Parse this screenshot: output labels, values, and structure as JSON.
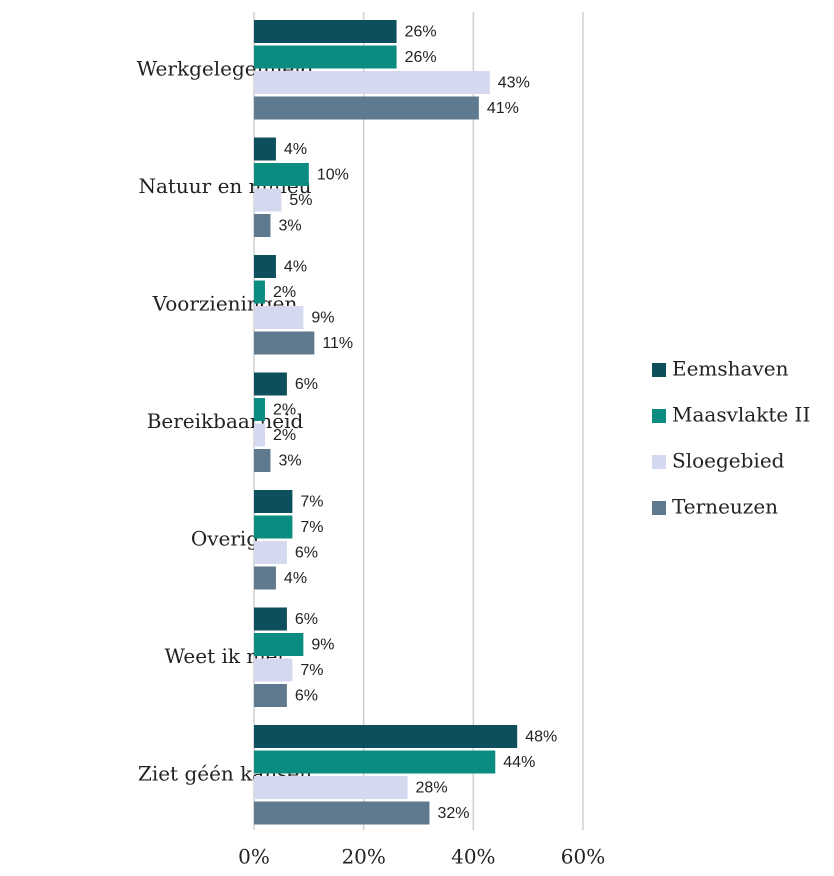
{
  "chart_data": {
    "type": "bar",
    "orientation": "horizontal",
    "categories": [
      "Werkgelegenheid",
      "Natuur en milieu",
      "Voorzieningen",
      "Bereikbaarheid",
      "Overig",
      "Weet ik niet",
      "Ziet géén kansen"
    ],
    "series": [
      {
        "name": "Eemshaven",
        "color": "#0d4f5c",
        "values": [
          26,
          4,
          4,
          6,
          7,
          6,
          48
        ],
        "value_labels": [
          "26%",
          "4%",
          "4%",
          "6%",
          "7%",
          "6%",
          "48%"
        ]
      },
      {
        "name": "Maasvlakte II",
        "color": "#0a8c80",
        "values": [
          26,
          10,
          2,
          2,
          7,
          9,
          44
        ],
        "value_labels": [
          "26%",
          "10%",
          "2%",
          "2%",
          "7%",
          "9%",
          "44%"
        ]
      },
      {
        "name": "Sloegebied",
        "color": "#d5d9ef",
        "values": [
          43,
          5,
          9,
          2,
          6,
          7,
          28
        ],
        "value_labels": [
          "43%",
          "5%",
          "9%",
          "2%",
          "6%",
          "7%",
          "28%"
        ]
      },
      {
        "name": "Terneuzen",
        "color": "#5f7a8e",
        "values": [
          41,
          3,
          11,
          3,
          4,
          6,
          32
        ],
        "value_labels": [
          "41%",
          "3%",
          "11%",
          "3%",
          "4%",
          "6%",
          "32%"
        ]
      }
    ],
    "xlim": [
      0,
      60
    ],
    "xticks": [
      {
        "value": 0,
        "label": "0%"
      },
      {
        "value": 20,
        "label": "20%"
      },
      {
        "value": 40,
        "label": "40%"
      },
      {
        "value": 60,
        "label": "60%"
      }
    ],
    "grid": true,
    "legend": "right"
  }
}
